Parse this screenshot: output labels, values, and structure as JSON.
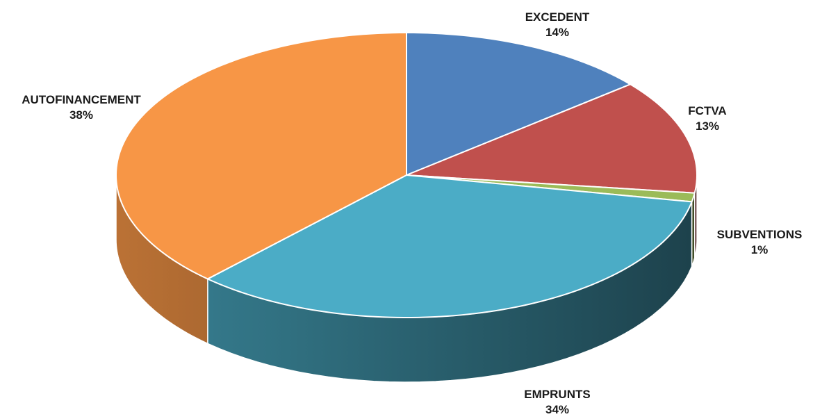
{
  "chart_data": {
    "type": "pie",
    "style": "3d",
    "legend": "none",
    "labels_shown": "category-and-percent",
    "slices": [
      {
        "label": "EXCEDENT",
        "value": 14,
        "percent_text": "14%",
        "color": "#4f81bd"
      },
      {
        "label": "FCTVA",
        "value": 13,
        "percent_text": "13%",
        "color": "#c0504d"
      },
      {
        "label": "SUBVENTIONS",
        "value": 1,
        "percent_text": "1%",
        "color": "#9bbb59"
      },
      {
        "label": "EMPRUNTS",
        "value": 34,
        "percent_text": "34%",
        "color": "#4bacc6"
      },
      {
        "label": "AUTOFINANCEMENT",
        "value": 38,
        "percent_text": "38%",
        "color": "#f79646"
      }
    ]
  }
}
